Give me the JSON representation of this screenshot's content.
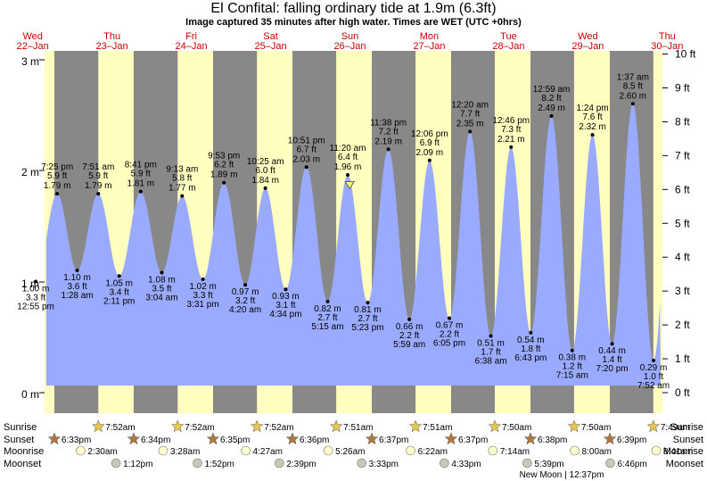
{
  "title": "El Confital: falling  ordinary tide at 1.9m (6.3ft)",
  "subtitle": "Image captured 35 minutes after high water. Times are WET (UTC +0hrs)",
  "colors": {
    "day": "#ffffc0",
    "night": "#888888",
    "water": "#9aaaff",
    "dayLabel": "#cc0000"
  },
  "chart_data": {
    "type": "area",
    "title": "El Confital: falling  ordinary tide at 1.9m (6.3ft)",
    "ylabel_left": "m",
    "ylabel_right": "ft",
    "ylim_m": [
      0,
      3
    ],
    "left_ticks": [
      "0 m",
      "1 m",
      "2 m",
      "3 m"
    ],
    "right_ticks": [
      "0 ft",
      "1 ft",
      "2 ft",
      "3 ft",
      "4 ft",
      "5 ft",
      "6 ft",
      "7 ft",
      "8 ft",
      "9 ft",
      "10 ft"
    ],
    "x_range_days": [
      22.65,
      30.44
    ],
    "current_level_m": 1.9,
    "days": [
      {
        "dow": "Wed",
        "date": "22–Jan",
        "day": 22
      },
      {
        "dow": "Thu",
        "date": "23–Jan",
        "day": 23
      },
      {
        "dow": "Fri",
        "date": "24–Jan",
        "day": 24
      },
      {
        "dow": "Sat",
        "date": "25–Jan",
        "day": 25
      },
      {
        "dow": "Sun",
        "date": "26–Jan",
        "day": 26
      },
      {
        "dow": "Mon",
        "date": "27–Jan",
        "day": 27
      },
      {
        "dow": "Tue",
        "date": "28–Jan",
        "day": 28
      },
      {
        "dow": "Wed",
        "date": "29–Jan",
        "day": 29
      },
      {
        "dow": "Thu",
        "date": "30–Jan",
        "day": 30
      }
    ],
    "tides": [
      {
        "type": "low",
        "day": 22,
        "time": "12:55 pm",
        "m": 1.0,
        "ft": "3.3 ft",
        "m_label": "1.00 m"
      },
      {
        "type": "high",
        "day": 22,
        "time": "7:25 pm",
        "m": 1.79,
        "ft": "5.9 ft",
        "m_label": "1.79 m"
      },
      {
        "type": "low",
        "day": 23,
        "time": "1:28 am",
        "m": 1.1,
        "ft": "3.6 ft",
        "m_label": "1.10 m"
      },
      {
        "type": "high",
        "day": 23,
        "time": "7:51 am",
        "m": 1.79,
        "ft": "5.9 ft",
        "m_label": "1.79 m"
      },
      {
        "type": "low",
        "day": 23,
        "time": "2:11 pm",
        "m": 1.05,
        "ft": "3.4 ft",
        "m_label": "1.05 m"
      },
      {
        "type": "high",
        "day": 23,
        "time": "8:41 pm",
        "m": 1.81,
        "ft": "5.9 ft",
        "m_label": "1.81 m"
      },
      {
        "type": "low",
        "day": 24,
        "time": "3:04 am",
        "m": 1.08,
        "ft": "3.5 ft",
        "m_label": "1.08 m"
      },
      {
        "type": "high",
        "day": 24,
        "time": "9:13 am",
        "m": 1.77,
        "ft": "5.8 ft",
        "m_label": "1.77 m"
      },
      {
        "type": "low",
        "day": 24,
        "time": "3:31 pm",
        "m": 1.02,
        "ft": "3.3 ft",
        "m_label": "1.02 m"
      },
      {
        "type": "high",
        "day": 24,
        "time": "9:53 pm",
        "m": 1.89,
        "ft": "6.2 ft",
        "m_label": "1.89 m"
      },
      {
        "type": "low",
        "day": 25,
        "time": "4:20 am",
        "m": 0.97,
        "ft": "3.2 ft",
        "m_label": "0.97 m"
      },
      {
        "type": "high",
        "day": 25,
        "time": "10:25 am",
        "m": 1.84,
        "ft": "6.0 ft",
        "m_label": "1.84 m"
      },
      {
        "type": "low",
        "day": 25,
        "time": "4:34 pm",
        "m": 0.93,
        "ft": "3.1 ft",
        "m_label": "0.93 m"
      },
      {
        "type": "high",
        "day": 25,
        "time": "10:51 pm",
        "m": 2.03,
        "ft": "6.7 ft",
        "m_label": "2.03 m"
      },
      {
        "type": "low",
        "day": 26,
        "time": "5:15 am",
        "m": 0.82,
        "ft": "2.7 ft",
        "m_label": "0.82 m"
      },
      {
        "type": "high",
        "day": 26,
        "time": "11:20 am",
        "m": 1.96,
        "ft": "6.4 ft",
        "m_label": "1.96 m"
      },
      {
        "type": "low",
        "day": 26,
        "time": "5:23 pm",
        "m": 0.81,
        "ft": "2.7 ft",
        "m_label": "0.81 m"
      },
      {
        "type": "high",
        "day": 26,
        "time": "11:38 pm",
        "m": 2.19,
        "ft": "7.2 ft",
        "m_label": "2.19 m"
      },
      {
        "type": "low",
        "day": 27,
        "time": "5:59 am",
        "m": 0.66,
        "ft": "2.2 ft",
        "m_label": "0.66 m"
      },
      {
        "type": "high",
        "day": 27,
        "time": "12:06 pm",
        "m": 2.09,
        "ft": "6.9 ft",
        "m_label": "2.09 m"
      },
      {
        "type": "low",
        "day": 27,
        "time": "6:05 pm",
        "m": 0.67,
        "ft": "2.2 ft",
        "m_label": "0.67 m"
      },
      {
        "type": "high",
        "day": 28,
        "time": "12:20 am",
        "m": 2.35,
        "ft": "7.7 ft",
        "m_label": "2.35 m"
      },
      {
        "type": "low",
        "day": 28,
        "time": "6:38 am",
        "m": 0.51,
        "ft": "1.7 ft",
        "m_label": "0.51 m"
      },
      {
        "type": "high",
        "day": 28,
        "time": "12:46 pm",
        "m": 2.21,
        "ft": "7.3 ft",
        "m_label": "2.21 m"
      },
      {
        "type": "low",
        "day": 28,
        "time": "6:43 pm",
        "m": 0.54,
        "ft": "1.8 ft",
        "m_label": "0.54 m"
      },
      {
        "type": "high",
        "day": 29,
        "time": "12:59 am",
        "m": 2.49,
        "ft": "8.2 ft",
        "m_label": "2.49 m"
      },
      {
        "type": "low",
        "day": 29,
        "time": "7:15 am",
        "m": 0.38,
        "ft": "1.2 ft",
        "m_label": "0.38 m"
      },
      {
        "type": "high",
        "day": 29,
        "time": "1:24 pm",
        "m": 2.32,
        "ft": "7.6 ft",
        "m_label": "2.32 m"
      },
      {
        "type": "low",
        "day": 29,
        "time": "7:20 pm",
        "m": 0.44,
        "ft": "1.4 ft",
        "m_label": "0.44 m"
      },
      {
        "type": "high",
        "day": 30,
        "time": "1:37 am",
        "m": 2.6,
        "ft": "8.5 ft",
        "m_label": "2.60 m"
      },
      {
        "type": "low",
        "day": 30,
        "time": "7:52 am",
        "m": 0.29,
        "ft": "1.0 ft",
        "m_label": "0.29 m"
      }
    ],
    "sunrise": [
      {
        "day": 23,
        "time": "7:52am"
      },
      {
        "day": 24,
        "time": "7:52am"
      },
      {
        "day": 25,
        "time": "7:52am"
      },
      {
        "day": 26,
        "time": "7:51am"
      },
      {
        "day": 27,
        "time": "7:51am"
      },
      {
        "day": 28,
        "time": "7:50am"
      },
      {
        "day": 29,
        "time": "7:50am"
      },
      {
        "day": 30,
        "time": "7:49am"
      }
    ],
    "sunset": [
      {
        "day": 22,
        "time": "6:33pm"
      },
      {
        "day": 23,
        "time": "6:34pm"
      },
      {
        "day": 24,
        "time": "6:35pm"
      },
      {
        "day": 25,
        "time": "6:36pm"
      },
      {
        "day": 26,
        "time": "6:37pm"
      },
      {
        "day": 27,
        "time": "6:37pm"
      },
      {
        "day": 28,
        "time": "6:38pm"
      },
      {
        "day": 29,
        "time": "6:39pm"
      }
    ],
    "moonrise": [
      {
        "day": 23,
        "time": "2:30am"
      },
      {
        "day": 24,
        "time": "3:28am"
      },
      {
        "day": 25,
        "time": "4:27am"
      },
      {
        "day": 26,
        "time": "5:26am"
      },
      {
        "day": 27,
        "time": "6:22am"
      },
      {
        "day": 28,
        "time": "7:14am"
      },
      {
        "day": 29,
        "time": "8:00am"
      },
      {
        "day": 30,
        "time": "8:41am"
      }
    ],
    "moonset": [
      {
        "day": 23,
        "time": "1:12pm"
      },
      {
        "day": 24,
        "time": "1:52pm"
      },
      {
        "day": 25,
        "time": "2:39pm"
      },
      {
        "day": 26,
        "time": "3:33pm"
      },
      {
        "day": 27,
        "time": "4:33pm"
      },
      {
        "day": 28,
        "time": "5:39pm"
      },
      {
        "day": 29,
        "time": "6:46pm"
      }
    ],
    "moon_phase_note": "New Moon | 12:37pm",
    "row_labels": {
      "sunrise": "Sunrise",
      "sunset": "Sunset",
      "moonrise": "Moonrise",
      "moonset": "Moonset"
    }
  }
}
